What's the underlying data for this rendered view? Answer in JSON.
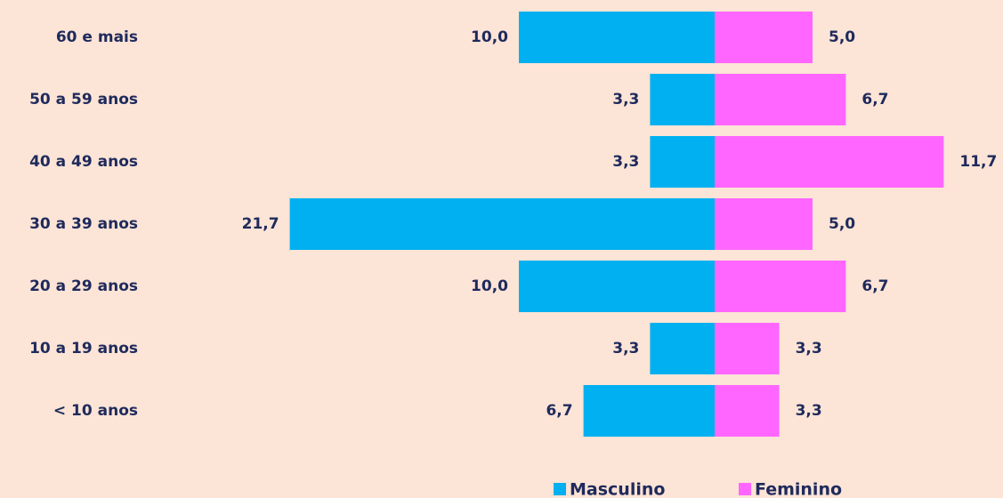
{
  "chart_data": {
    "type": "bar",
    "categories": [
      "60 e mais",
      "50 a 59 anos",
      "40 a 49 anos",
      "30 a 39 anos",
      "20 a 29 anos",
      "10 a 19 anos",
      "< 10 anos"
    ],
    "series": [
      {
        "name": "Masculino",
        "color": "#00b0f0",
        "values": [
          10.0,
          3.3,
          3.3,
          21.7,
          10.0,
          3.3,
          6.7
        ],
        "value_labels": [
          "10,0",
          "3,3",
          "3,3",
          "21,7",
          "10,0",
          "3,3",
          "6,7"
        ]
      },
      {
        "name": "Feminino",
        "color": "#ff66ff",
        "values": [
          5.0,
          6.7,
          11.7,
          5.0,
          6.7,
          3.3,
          3.3
        ],
        "value_labels": [
          "5,0",
          "6,7",
          "11,7",
          "5,0",
          "6,7",
          "3,3",
          "3,3"
        ]
      }
    ],
    "legend": "bottom"
  }
}
